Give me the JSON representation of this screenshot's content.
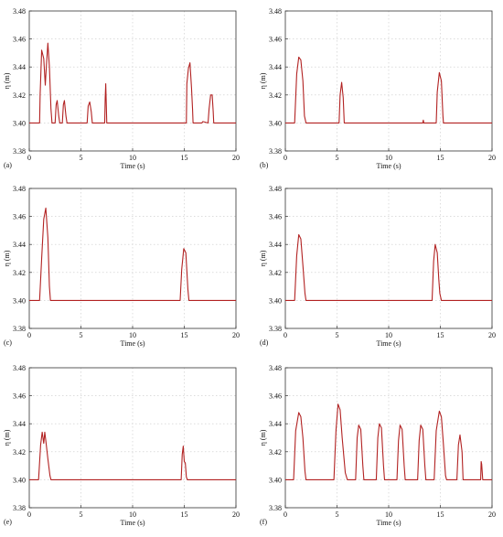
{
  "figure": {
    "panels_count": 6
  },
  "chart_data": [
    {
      "type": "line",
      "panel_label": "(a)",
      "xlabel": "Time (s)",
      "ylabel": "η (m)",
      "xlim": [
        0,
        20
      ],
      "ylim": [
        3.38,
        3.48
      ],
      "xticks": [
        0,
        5,
        10,
        15,
        20
      ],
      "yticks": [
        3.38,
        3.4,
        3.42,
        3.44,
        3.46,
        3.48
      ],
      "ytick_labels": [
        "3.38",
        "3.40",
        "3.42",
        "3.44",
        "3.46",
        "3.48"
      ],
      "grid": true,
      "series": [
        {
          "color": "#b22222",
          "x": [
            0,
            1.0,
            1.05,
            1.2,
            1.4,
            1.55,
            1.65,
            1.8,
            1.95,
            2.1,
            2.2,
            2.3,
            2.5,
            2.6,
            2.7,
            2.85,
            2.95,
            3.0,
            3.2,
            3.3,
            3.4,
            3.55,
            3.65,
            3.7,
            5.6,
            5.7,
            5.85,
            6.0,
            6.1,
            7.3,
            7.35,
            7.4,
            7.5,
            15.2,
            15.25,
            15.4,
            15.55,
            15.7,
            15.8,
            15.85,
            16.7,
            16.8,
            17.3,
            17.4,
            17.55,
            17.7,
            17.8,
            17.85,
            20.0
          ],
          "y": [
            3.4,
            3.4,
            3.42,
            3.452,
            3.446,
            3.427,
            3.44,
            3.457,
            3.44,
            3.41,
            3.4,
            3.4,
            3.4,
            3.413,
            3.416,
            3.405,
            3.4,
            3.4,
            3.4,
            3.413,
            3.416,
            3.405,
            3.4,
            3.4,
            3.4,
            3.412,
            3.415,
            3.408,
            3.4,
            3.4,
            3.418,
            3.428,
            3.4,
            3.4,
            3.428,
            3.439,
            3.443,
            3.425,
            3.41,
            3.4,
            3.4,
            3.401,
            3.4,
            3.41,
            3.42,
            3.42,
            3.408,
            3.4,
            3.4
          ]
        }
      ]
    },
    {
      "type": "line",
      "panel_label": "(b)",
      "xlabel": "Time (s)",
      "ylabel": "η (m)",
      "xlim": [
        0,
        20
      ],
      "ylim": [
        3.38,
        3.48
      ],
      "xticks": [
        0,
        5,
        10,
        15,
        20
      ],
      "yticks": [
        3.38,
        3.4,
        3.42,
        3.44,
        3.46,
        3.48
      ],
      "ytick_labels": [
        "3.38",
        "3.40",
        "3.42",
        "3.44",
        "3.46",
        "3.48"
      ],
      "grid": true,
      "series": [
        {
          "color": "#b22222",
          "x": [
            0,
            0.9,
            1.1,
            1.3,
            1.5,
            1.7,
            1.85,
            2.0,
            5.2,
            5.3,
            5.45,
            5.6,
            5.7,
            13.3,
            13.35,
            13.4,
            14.6,
            14.7,
            14.9,
            15.1,
            15.25,
            15.3,
            20.0
          ],
          "y": [
            3.4,
            3.4,
            3.435,
            3.447,
            3.445,
            3.43,
            3.405,
            3.4,
            3.4,
            3.42,
            3.429,
            3.418,
            3.4,
            3.4,
            3.402,
            3.4,
            3.4,
            3.422,
            3.436,
            3.43,
            3.405,
            3.4,
            3.4
          ]
        }
      ]
    },
    {
      "type": "line",
      "panel_label": "(c)",
      "xlabel": "Time (s)",
      "ylabel": "η (m)",
      "xlim": [
        0,
        20
      ],
      "ylim": [
        3.38,
        3.48
      ],
      "xticks": [
        0,
        5,
        10,
        15,
        20
      ],
      "yticks": [
        3.38,
        3.4,
        3.42,
        3.44,
        3.46,
        3.48
      ],
      "ytick_labels": [
        "3.38",
        "3.40",
        "3.42",
        "3.44",
        "3.46",
        "3.48"
      ],
      "grid": true,
      "series": [
        {
          "color": "#b22222",
          "x": [
            0,
            1.0,
            1.2,
            1.4,
            1.6,
            1.8,
            1.95,
            2.05,
            14.6,
            14.75,
            14.95,
            15.15,
            15.35,
            15.45,
            20.0
          ],
          "y": [
            3.4,
            3.4,
            3.43,
            3.458,
            3.466,
            3.445,
            3.41,
            3.4,
            3.4,
            3.422,
            3.437,
            3.434,
            3.408,
            3.4,
            3.4
          ]
        }
      ]
    },
    {
      "type": "line",
      "panel_label": "(d)",
      "xlabel": "Time (s)",
      "ylabel": "η (m)",
      "xlim": [
        0,
        20
      ],
      "ylim": [
        3.38,
        3.48
      ],
      "xticks": [
        0,
        5,
        10,
        15,
        20
      ],
      "yticks": [
        3.38,
        3.4,
        3.42,
        3.44,
        3.46,
        3.48
      ],
      "ytick_labels": [
        "3.38",
        "3.40",
        "3.42",
        "3.44",
        "3.46",
        "3.48"
      ],
      "grid": true,
      "series": [
        {
          "color": "#b22222",
          "x": [
            0,
            0.9,
            1.1,
            1.3,
            1.5,
            1.7,
            1.9,
            2.0,
            14.2,
            14.35,
            14.5,
            14.7,
            14.85,
            14.95,
            15.1,
            20.0
          ],
          "y": [
            3.4,
            3.4,
            3.432,
            3.447,
            3.444,
            3.425,
            3.405,
            3.4,
            3.4,
            3.428,
            3.44,
            3.434,
            3.415,
            3.405,
            3.4,
            3.4
          ]
        }
      ]
    },
    {
      "type": "line",
      "panel_label": "(e)",
      "xlabel": "Time (s)",
      "ylabel": "η (m)",
      "xlim": [
        0,
        20
      ],
      "ylim": [
        3.38,
        3.48
      ],
      "xticks": [
        0,
        5,
        10,
        15,
        20
      ],
      "yticks": [
        3.38,
        3.4,
        3.42,
        3.44,
        3.46,
        3.48
      ],
      "ytick_labels": [
        "3.38",
        "3.40",
        "3.42",
        "3.44",
        "3.46",
        "3.48"
      ],
      "grid": true,
      "series": [
        {
          "color": "#b22222",
          "x": [
            0,
            0.9,
            1.1,
            1.25,
            1.4,
            1.5,
            1.6,
            1.8,
            2.0,
            2.1,
            14.7,
            14.8,
            14.9,
            15.0,
            15.1,
            15.2,
            15.3,
            20.0
          ],
          "y": [
            3.4,
            3.4,
            3.425,
            3.434,
            3.426,
            3.434,
            3.428,
            3.415,
            3.403,
            3.4,
            3.4,
            3.418,
            3.424,
            3.413,
            3.412,
            3.402,
            3.4,
            3.4
          ]
        }
      ]
    },
    {
      "type": "line",
      "panel_label": "(f)",
      "xlabel": "Time (s)",
      "ylabel": "η (m)",
      "xlim": [
        0,
        20
      ],
      "ylim": [
        3.38,
        3.48
      ],
      "xticks": [
        0,
        5,
        10,
        15,
        20
      ],
      "yticks": [
        3.38,
        3.4,
        3.42,
        3.44,
        3.46,
        3.48
      ],
      "ytick_labels": [
        "3.38",
        "3.40",
        "3.42",
        "3.44",
        "3.46",
        "3.48"
      ],
      "grid": true,
      "series": [
        {
          "color": "#b22222",
          "x": [
            0,
            0.8,
            1.0,
            1.3,
            1.5,
            1.7,
            1.9,
            2.0,
            4.7,
            4.9,
            5.1,
            5.3,
            5.5,
            5.8,
            6.0,
            6.8,
            6.95,
            7.1,
            7.3,
            7.5,
            7.6,
            8.8,
            8.95,
            9.1,
            9.3,
            9.5,
            9.6,
            10.8,
            10.95,
            11.1,
            11.3,
            11.5,
            11.6,
            12.8,
            12.95,
            13.1,
            13.3,
            13.5,
            13.6,
            14.4,
            14.6,
            14.9,
            15.1,
            15.3,
            15.5,
            15.6,
            16.6,
            16.75,
            16.9,
            17.1,
            17.2,
            18.9,
            18.95,
            19.0,
            19.1,
            20.0
          ],
          "y": [
            3.4,
            3.4,
            3.435,
            3.448,
            3.445,
            3.43,
            3.406,
            3.4,
            3.4,
            3.435,
            3.454,
            3.45,
            3.43,
            3.405,
            3.4,
            3.4,
            3.43,
            3.439,
            3.436,
            3.41,
            3.4,
            3.4,
            3.43,
            3.44,
            3.437,
            3.41,
            3.4,
            3.4,
            3.428,
            3.439,
            3.436,
            3.41,
            3.4,
            3.4,
            3.428,
            3.439,
            3.436,
            3.41,
            3.4,
            3.4,
            3.435,
            3.449,
            3.445,
            3.425,
            3.403,
            3.4,
            3.4,
            3.425,
            3.432,
            3.42,
            3.4,
            3.4,
            3.413,
            3.411,
            3.4,
            3.4
          ]
        }
      ]
    }
  ]
}
